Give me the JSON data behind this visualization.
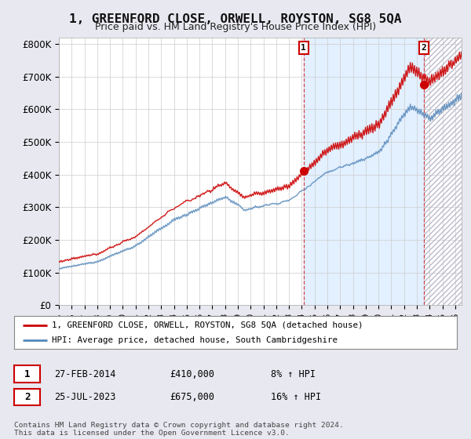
{
  "title": "1, GREENFORD CLOSE, ORWELL, ROYSTON, SG8 5QA",
  "subtitle": "Price paid vs. HM Land Registry's House Price Index (HPI)",
  "ylabel_ticks": [
    "£0",
    "£100K",
    "£200K",
    "£300K",
    "£400K",
    "£500K",
    "£600K",
    "£700K",
    "£800K"
  ],
  "ytick_vals": [
    0,
    100000,
    200000,
    300000,
    400000,
    500000,
    600000,
    700000,
    800000
  ],
  "ylim": [
    0,
    820000
  ],
  "xlim_start": 1995.0,
  "xlim_end": 2026.5,
  "legend_label_red": "1, GREENFORD CLOSE, ORWELL, ROYSTON, SG8 5QA (detached house)",
  "legend_label_blue": "HPI: Average price, detached house, South Cambridgeshire",
  "sale1_label": "1",
  "sale1_date": "27-FEB-2014",
  "sale1_price": "£410,000",
  "sale1_hpi": "8% ↑ HPI",
  "sale1_x": 2014.15,
  "sale1_y": 410000,
  "sale2_label": "2",
  "sale2_date": "25-JUL-2023",
  "sale2_price": "£675,000",
  "sale2_hpi": "16% ↑ HPI",
  "sale2_x": 2023.55,
  "sale2_y": 675000,
  "footer": "Contains HM Land Registry data © Crown copyright and database right 2024.\nThis data is licensed under the Open Government Licence v3.0.",
  "red_color": "#cc0000",
  "blue_color": "#5588bb",
  "shade_color": "#ddeeff",
  "bg_color": "#e8e8f0",
  "plot_bg": "#ffffff",
  "grid_color": "#cccccc",
  "hatch_color": "#bbbbcc"
}
